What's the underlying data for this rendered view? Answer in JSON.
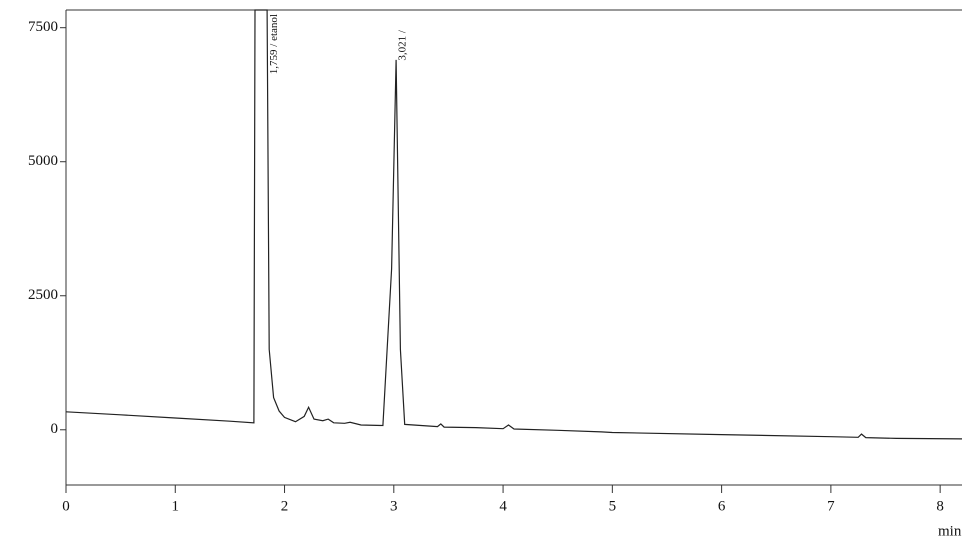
{
  "chart_data": {
    "type": "line",
    "x_label": "min",
    "annotations": [
      {
        "text": "1,759 / etanol",
        "x": 1.86
      },
      {
        "text": "3,021 /",
        "x": 3.04
      }
    ],
    "xlim": [
      0,
      8.2
    ],
    "ylim": [
      -1030,
      7830
    ],
    "xticks": [
      0,
      1,
      2,
      3,
      4,
      5,
      6,
      7,
      8
    ],
    "yticks": [
      0,
      2500,
      5000,
      7500
    ],
    "series": [
      {
        "color": "#222222",
        "x": [
          0,
          0.5,
          1.0,
          1.5,
          1.72,
          1.73,
          1.84,
          1.86,
          1.9,
          1.95,
          2.0,
          2.1,
          2.18,
          2.22,
          2.27,
          2.35,
          2.4,
          2.45,
          2.55,
          2.6,
          2.7,
          2.9,
          2.98,
          3.021,
          3.06,
          3.1,
          3.4,
          3.43,
          3.46,
          3.75,
          4.0,
          4.05,
          4.1,
          4.5,
          4.9,
          5.0,
          6.0,
          7.0,
          7.25,
          7.28,
          7.32,
          7.6,
          8.2
        ],
        "values": [
          336,
          280,
          220,
          160,
          130,
          7830,
          7830,
          1500,
          600,
          350,
          230,
          150,
          250,
          420,
          200,
          170,
          200,
          130,
          120,
          140,
          90,
          80,
          3000,
          6900,
          1500,
          100,
          60,
          110,
          50,
          40,
          20,
          90,
          15,
          -10,
          -40,
          -50,
          -90,
          -130,
          -140,
          -80,
          -145,
          -160,
          -170
        ]
      }
    ]
  }
}
